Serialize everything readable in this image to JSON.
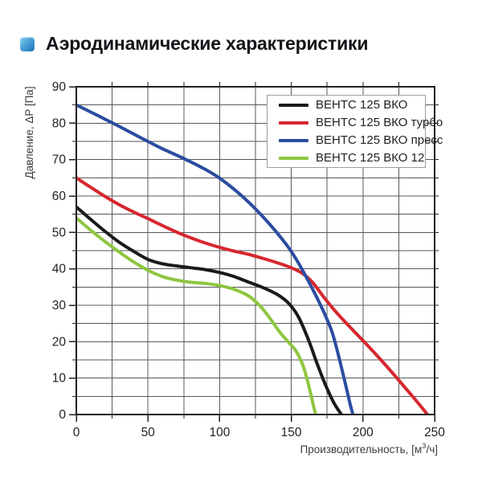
{
  "header": {
    "title": "Аэродинамические характеристики",
    "bullet_icon": "gradient-blue-square",
    "bullet_color_top": "#8fd1ee",
    "bullet_color_bottom": "#1c73b7"
  },
  "palette": {
    "grid": "#58595b",
    "frame": "#231f20",
    "text": "#231f20",
    "legend_border": "#9c9ea1",
    "background": "#ffffff"
  },
  "chart_data": {
    "type": "line",
    "title": "",
    "xlabel": "Производительность, [м³/ч]",
    "xlabel_parts": {
      "prefix": "Производительность, [м",
      "sup": "3",
      "suffix": "/ч]"
    },
    "ylabel": "Давление, ΔP [Па]",
    "xlim": [
      0,
      250
    ],
    "ylim": [
      0,
      90
    ],
    "x_major_ticks": [
      0,
      50,
      100,
      150,
      200,
      250
    ],
    "x_minor_step": 25,
    "y_major_ticks": [
      0,
      10,
      20,
      30,
      40,
      50,
      60,
      70,
      80,
      90
    ],
    "y_minor_step": 5,
    "grid": true,
    "legend_position": "top-right",
    "series": [
      {
        "name": "ВЕНТС 125 ВКО",
        "color": "#1a1a1a",
        "points": [
          [
            0,
            57
          ],
          [
            10,
            53.6
          ],
          [
            20,
            50.3
          ],
          [
            30,
            47.3
          ],
          [
            40,
            44.8
          ],
          [
            50,
            42.6
          ],
          [
            60,
            41.4
          ],
          [
            70,
            40.8
          ],
          [
            80,
            40.3
          ],
          [
            90,
            39.8
          ],
          [
            100,
            39
          ],
          [
            110,
            37.9
          ],
          [
            120,
            36.4
          ],
          [
            130,
            34.9
          ],
          [
            140,
            33
          ],
          [
            148,
            30.6
          ],
          [
            155,
            26.8
          ],
          [
            162,
            20.5
          ],
          [
            168,
            14
          ],
          [
            174,
            8
          ],
          [
            180,
            3
          ],
          [
            185,
            0
          ]
        ]
      },
      {
        "name": "ВЕНТС 125 ВКО турбо",
        "color": "#d7272e",
        "points": [
          [
            0,
            65
          ],
          [
            10,
            62.4
          ],
          [
            20,
            59.9
          ],
          [
            30,
            57.6
          ],
          [
            40,
            55.6
          ],
          [
            50,
            53.8
          ],
          [
            60,
            51.9
          ],
          [
            70,
            50.1
          ],
          [
            80,
            48.5
          ],
          [
            90,
            47.1
          ],
          [
            100,
            45.9
          ],
          [
            110,
            44.9
          ],
          [
            120,
            44
          ],
          [
            130,
            42.9
          ],
          [
            140,
            41.7
          ],
          [
            150,
            40.3
          ],
          [
            158,
            38.7
          ],
          [
            165,
            36.2
          ],
          [
            172,
            32.6
          ],
          [
            180,
            28.7
          ],
          [
            190,
            24.4
          ],
          [
            200,
            20.3
          ],
          [
            210,
            16.1
          ],
          [
            220,
            11.7
          ],
          [
            230,
            7.1
          ],
          [
            238,
            3.4
          ],
          [
            245,
            0
          ]
        ]
      },
      {
        "name": "ВЕНТС 125 ВКО пресс",
        "color": "#2b4da0",
        "points": [
          [
            0,
            85
          ],
          [
            15,
            82.1
          ],
          [
            30,
            79.1
          ],
          [
            45,
            76
          ],
          [
            60,
            73
          ],
          [
            75,
            70.3
          ],
          [
            90,
            67.3
          ],
          [
            100,
            64.9
          ],
          [
            110,
            61.9
          ],
          [
            120,
            58.4
          ],
          [
            130,
            54.4
          ],
          [
            140,
            49.9
          ],
          [
            148,
            45.9
          ],
          [
            155,
            41.6
          ],
          [
            162,
            36.6
          ],
          [
            168,
            32
          ],
          [
            174,
            27
          ],
          [
            179,
            22
          ],
          [
            184,
            14.5
          ],
          [
            188,
            8
          ],
          [
            191,
            3
          ],
          [
            193,
            0
          ]
        ]
      },
      {
        "name": "ВЕНТС 125 ВКО 12",
        "color": "#8ec63f",
        "points": [
          [
            0,
            54
          ],
          [
            10,
            50.6
          ],
          [
            20,
            47.5
          ],
          [
            30,
            44.6
          ],
          [
            40,
            41.9
          ],
          [
            50,
            39.6
          ],
          [
            60,
            37.9
          ],
          [
            70,
            36.9
          ],
          [
            80,
            36.3
          ],
          [
            90,
            36
          ],
          [
            100,
            35.4
          ],
          [
            110,
            34.4
          ],
          [
            120,
            32.6
          ],
          [
            128,
            29.9
          ],
          [
            135,
            26.5
          ],
          [
            142,
            22.6
          ],
          [
            148,
            19.9
          ],
          [
            153,
            17.6
          ],
          [
            157,
            14.6
          ],
          [
            160,
            11.2
          ],
          [
            163,
            6.6
          ],
          [
            165,
            3.2
          ],
          [
            167,
            0
          ]
        ]
      }
    ]
  }
}
